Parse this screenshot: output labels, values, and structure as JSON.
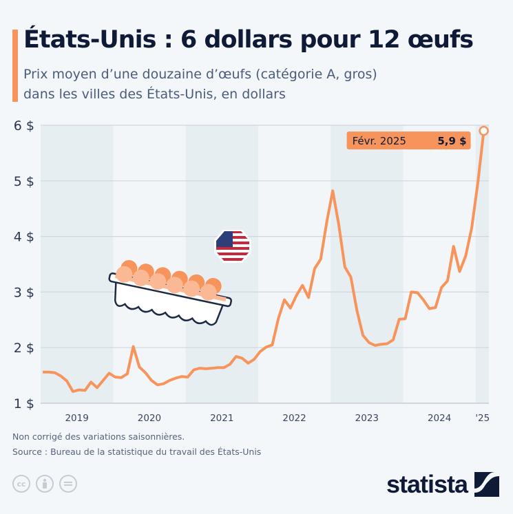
{
  "header": {
    "title": "États-Unis : 6 dollars pour 12 œufs",
    "subtitle_line1": "Prix moyen d’une douzaine d’œufs (catégorie A, gros)",
    "subtitle_line2": "dans les villes des États-Unis, en dollars"
  },
  "footer": {
    "note": "Non corrigé des variations saisonnières.",
    "source": "Source : Bureau de la statistique du travail des États-Unis",
    "logo": "statista",
    "license_icons": [
      "cc-icon",
      "attribution-icon",
      "no-derivatives-icon"
    ]
  },
  "colors": {
    "line": "#f7945b",
    "band_shaded": "#e7eef2",
    "band_light": "#f2f6f9",
    "text_dark": "#0f1b36",
    "grid": "#cfd6de"
  },
  "chart_data": {
    "type": "line",
    "title": "États-Unis : 6 dollars pour 12 œufs",
    "xlabel": "",
    "ylabel": "",
    "ylim": [
      1,
      6
    ],
    "y_ticks": [
      1,
      2,
      3,
      4,
      5,
      6
    ],
    "y_tick_labels": [
      "1 $",
      "2 $",
      "3 $",
      "4 $",
      "5 $",
      "6 $"
    ],
    "x_tick_labels": [
      "2019",
      "2020",
      "2021",
      "2022",
      "2023",
      "2024",
      "'25"
    ],
    "grid": true,
    "series": [
      {
        "name": "Prix moyen d'une douzaine d'œufs",
        "start": "2019-01",
        "values": [
          1.56,
          1.56,
          1.55,
          1.49,
          1.4,
          1.21,
          1.24,
          1.23,
          1.38,
          1.28,
          1.41,
          1.54,
          1.47,
          1.46,
          1.53,
          2.02,
          1.65,
          1.55,
          1.41,
          1.33,
          1.35,
          1.41,
          1.45,
          1.48,
          1.47,
          1.6,
          1.63,
          1.62,
          1.63,
          1.64,
          1.64,
          1.7,
          1.84,
          1.81,
          1.72,
          1.79,
          1.93,
          2.01,
          2.05,
          2.52,
          2.86,
          2.71,
          2.94,
          3.12,
          2.9,
          3.42,
          3.59,
          4.25,
          4.82,
          4.21,
          3.45,
          3.27,
          2.67,
          2.22,
          2.09,
          2.04,
          2.06,
          2.07,
          2.14,
          2.51,
          2.52,
          3.0,
          2.99,
          2.86,
          2.7,
          2.72,
          3.08,
          3.2,
          3.82,
          3.37,
          3.65,
          4.15,
          4.95,
          5.9
        ]
      }
    ],
    "annotation": {
      "label": "Févr. 2025",
      "value_label": "5,9 $",
      "value": 5.9
    }
  }
}
